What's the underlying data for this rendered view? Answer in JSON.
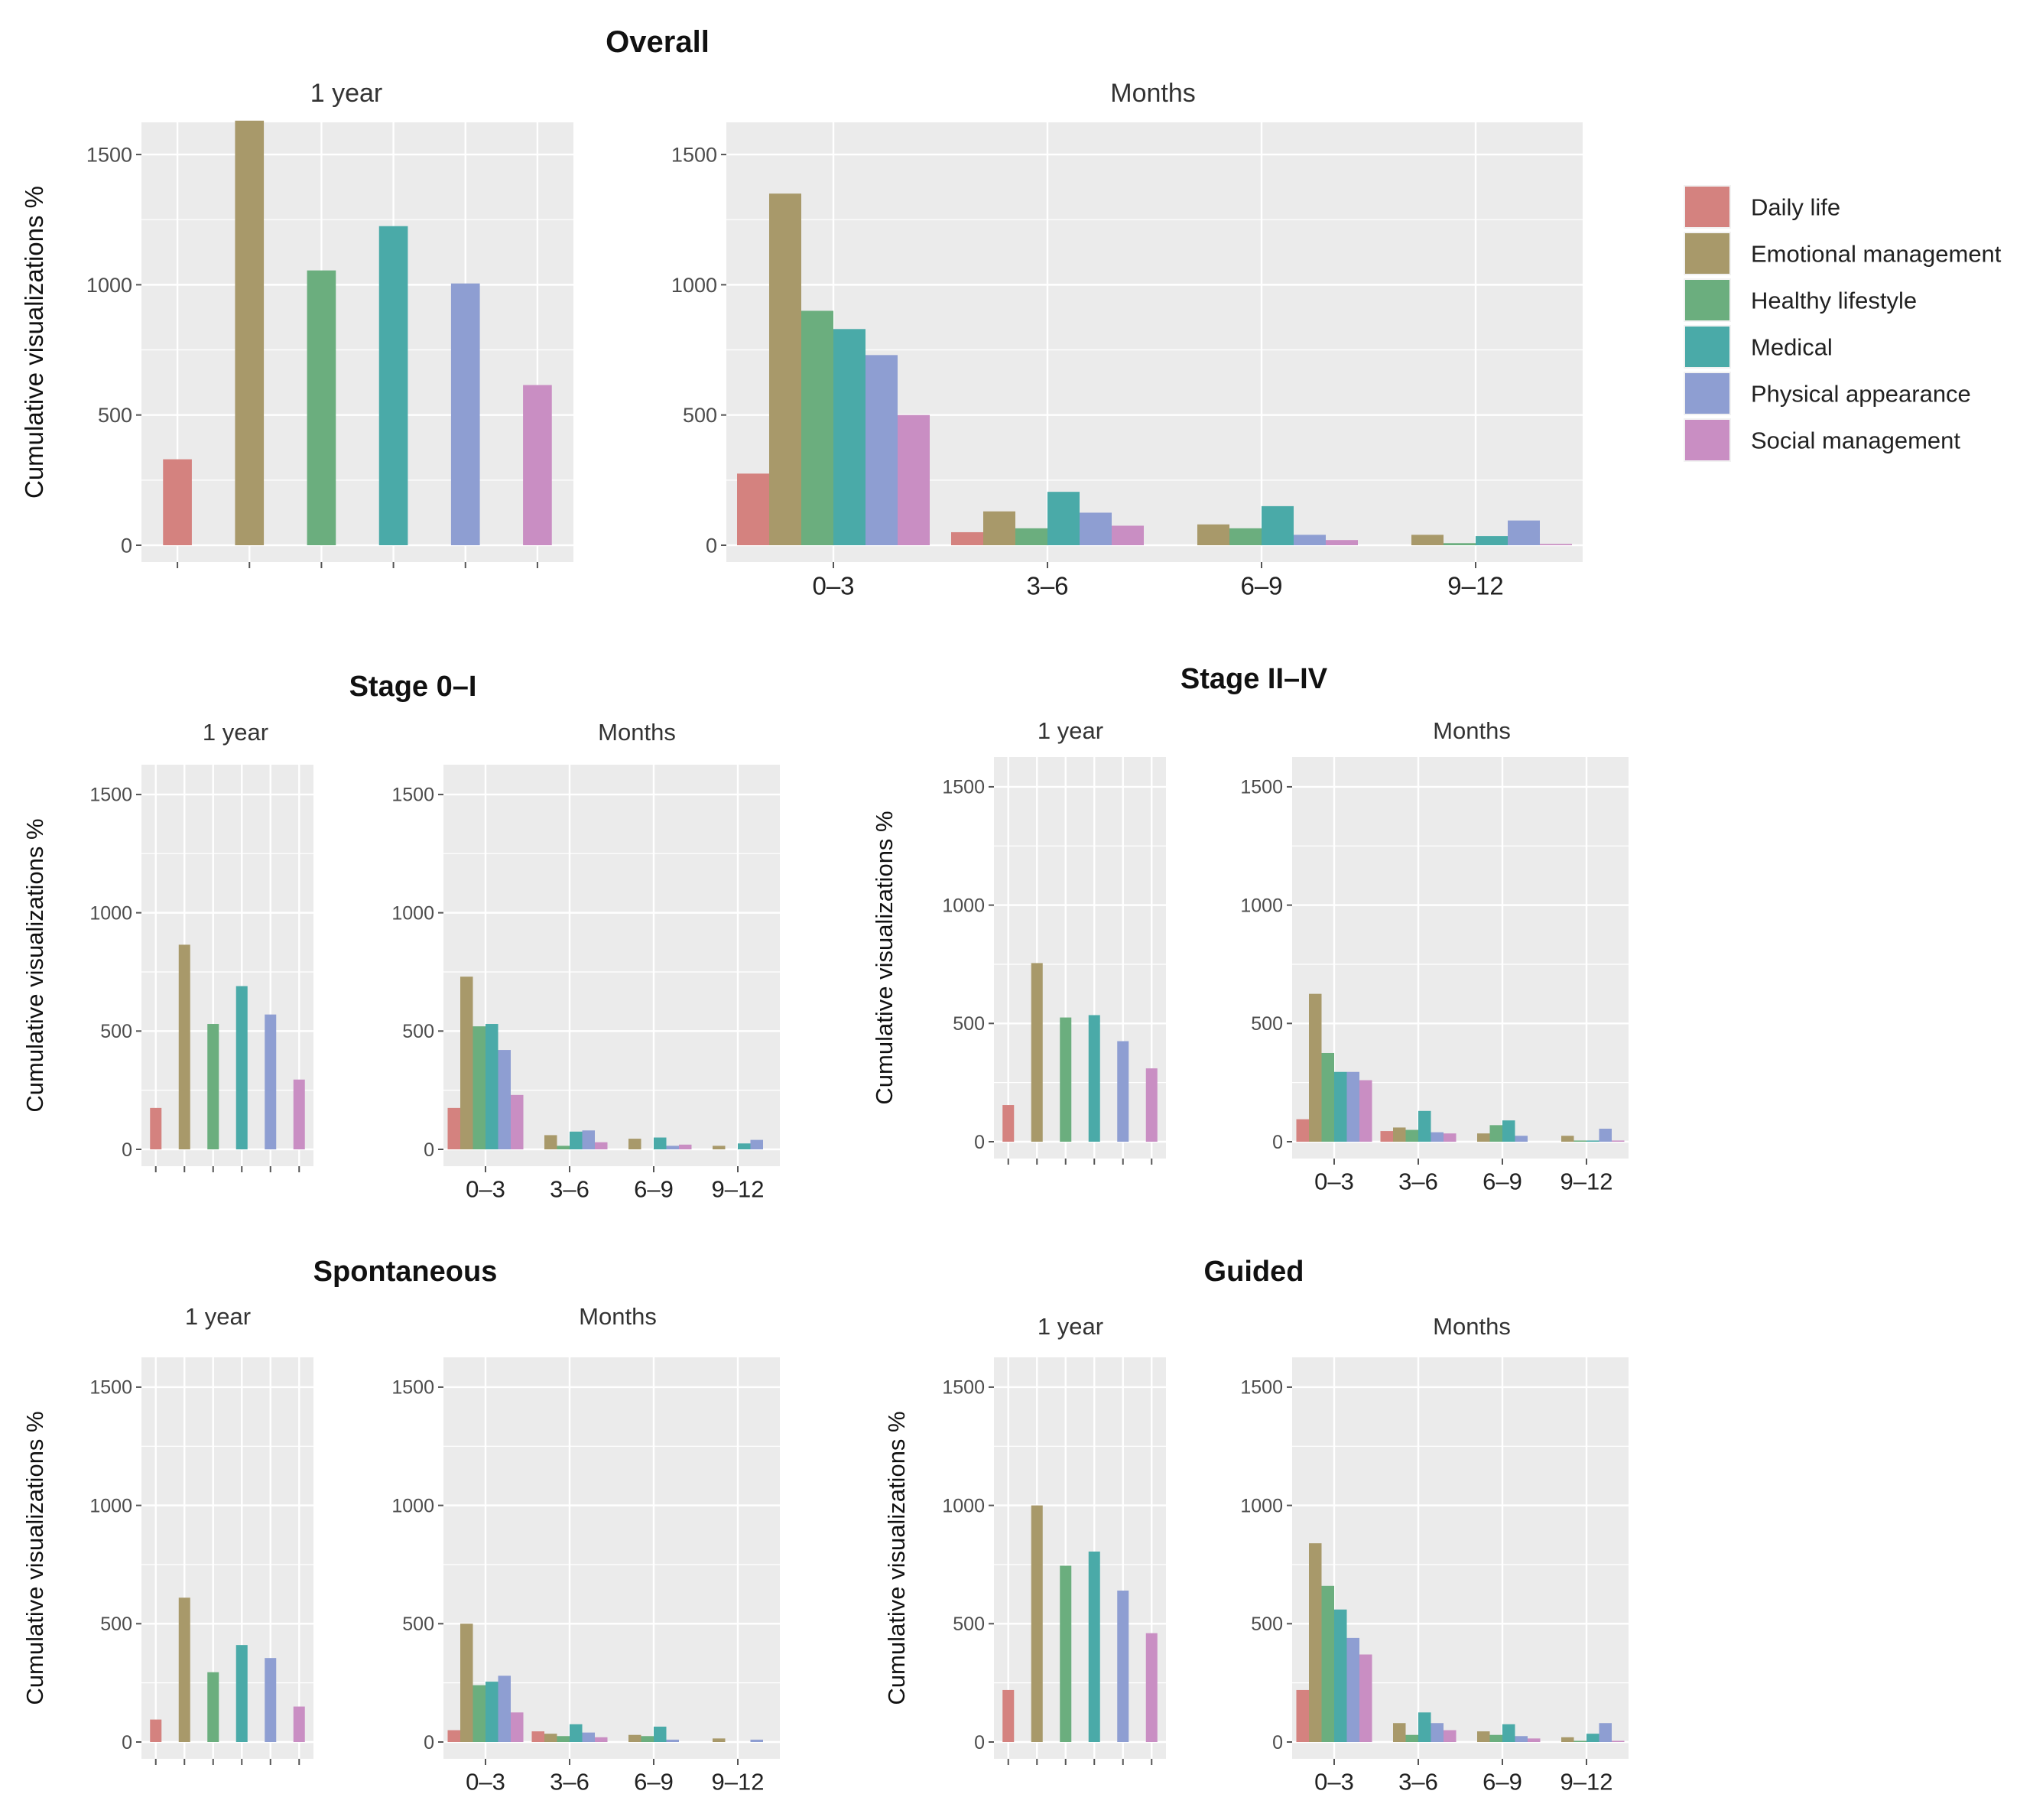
{
  "figure": {
    "panel_titles": [
      "1 year",
      "Months"
    ],
    "ylabel": "Cumulative visualizations %"
  },
  "legend": {
    "items": [
      {
        "label": "Daily life",
        "color": "#D4827F"
      },
      {
        "label": "Emotional management",
        "color": "#A8996A"
      },
      {
        "label": "Healthy lifestyle",
        "color": "#6BAE7E"
      },
      {
        "label": "Medical",
        "color": "#4AAAA8"
      },
      {
        "label": "Physical appearance",
        "color": "#8E9ED2"
      },
      {
        "label": "Social management",
        "color": "#C98EC3"
      }
    ]
  },
  "chart_data": [
    {
      "type": "bar",
      "title": "Overall",
      "series_names": [
        "Daily life",
        "Emotional management",
        "Healthy lifestyle",
        "Medical",
        "Physical appearance",
        "Social management"
      ],
      "yticks": [
        "0",
        "500",
        "1000",
        "1500"
      ],
      "ylim": [
        0,
        1600
      ],
      "year_panel": {
        "title": "1 year",
        "values": [
          330,
          1630,
          1055,
          1225,
          1005,
          615
        ]
      },
      "months_panel": {
        "title": "Months",
        "categories": [
          "0–3",
          "3–6",
          "6–9",
          "9–12"
        ],
        "values": [
          [
            275,
            1350,
            900,
            830,
            730,
            500
          ],
          [
            50,
            130,
            65,
            205,
            125,
            75
          ],
          [
            0,
            80,
            65,
            150,
            40,
            20
          ],
          [
            0,
            40,
            8,
            35,
            95,
            5
          ]
        ]
      }
    },
    {
      "type": "bar",
      "title": "Stage 0–I",
      "series_names": [
        "Daily life",
        "Emotional management",
        "Healthy lifestyle",
        "Medical",
        "Physical appearance",
        "Social management"
      ],
      "yticks": [
        "0",
        "500",
        "1000",
        "1500"
      ],
      "ylim": [
        0,
        1600
      ],
      "year_panel": {
        "title": "1 year",
        "values": [
          175,
          865,
          530,
          690,
          570,
          295
        ]
      },
      "months_panel": {
        "title": "Months",
        "categories": [
          "0–3",
          "3–6",
          "6–9",
          "9–12"
        ],
        "values": [
          [
            175,
            730,
            520,
            530,
            420,
            230
          ],
          [
            0,
            60,
            15,
            75,
            80,
            30
          ],
          [
            0,
            45,
            0,
            50,
            15,
            20
          ],
          [
            0,
            15,
            0,
            25,
            40,
            0
          ]
        ]
      }
    },
    {
      "type": "bar",
      "title": "Stage II–IV",
      "series_names": [
        "Daily life",
        "Emotional management",
        "Healthy lifestyle",
        "Medical",
        "Physical appearance",
        "Social management"
      ],
      "yticks": [
        "0",
        "500",
        "1000",
        "1500"
      ],
      "ylim": [
        0,
        1600
      ],
      "year_panel": {
        "title": "1 year",
        "values": [
          155,
          755,
          525,
          535,
          425,
          310
        ]
      },
      "months_panel": {
        "title": "Months",
        "categories": [
          "0–3",
          "3–6",
          "6–9",
          "9–12"
        ],
        "values": [
          [
            95,
            625,
            375,
            295,
            295,
            260
          ],
          [
            45,
            60,
            50,
            130,
            40,
            35
          ],
          [
            0,
            35,
            70,
            90,
            25,
            0
          ],
          [
            0,
            25,
            5,
            5,
            55,
            5
          ]
        ]
      }
    },
    {
      "type": "bar",
      "title": "Spontaneous",
      "series_names": [
        "Daily life",
        "Emotional management",
        "Healthy lifestyle",
        "Medical",
        "Physical appearance",
        "Social management"
      ],
      "yticks": [
        "0",
        "500",
        "1000",
        "1500"
      ],
      "ylim": [
        0,
        1600
      ],
      "year_panel": {
        "title": "1 year",
        "values": [
          95,
          610,
          295,
          410,
          355,
          150
        ]
      },
      "months_panel": {
        "title": "Months",
        "categories": [
          "0–3",
          "3–6",
          "6–9",
          "9–12"
        ],
        "values": [
          [
            50,
            500,
            240,
            255,
            280,
            125
          ],
          [
            45,
            35,
            25,
            75,
            40,
            20
          ],
          [
            0,
            30,
            25,
            65,
            10,
            0
          ],
          [
            0,
            15,
            0,
            0,
            10,
            0
          ]
        ]
      }
    },
    {
      "type": "bar",
      "title": "Guided",
      "series_names": [
        "Daily life",
        "Emotional management",
        "Healthy lifestyle",
        "Medical",
        "Physical appearance",
        "Social management"
      ],
      "yticks": [
        "0",
        "500",
        "1000",
        "1500"
      ],
      "ylim": [
        0,
        1600
      ],
      "year_panel": {
        "title": "1 year",
        "values": [
          220,
          1000,
          745,
          805,
          640,
          460
        ]
      },
      "months_panel": {
        "title": "Months",
        "categories": [
          "0–3",
          "3–6",
          "6–9",
          "9–12"
        ],
        "values": [
          [
            220,
            840,
            660,
            560,
            440,
            370
          ],
          [
            0,
            80,
            30,
            125,
            80,
            50
          ],
          [
            0,
            45,
            30,
            75,
            25,
            15
          ],
          [
            0,
            20,
            5,
            35,
            80,
            5
          ]
        ]
      }
    }
  ]
}
